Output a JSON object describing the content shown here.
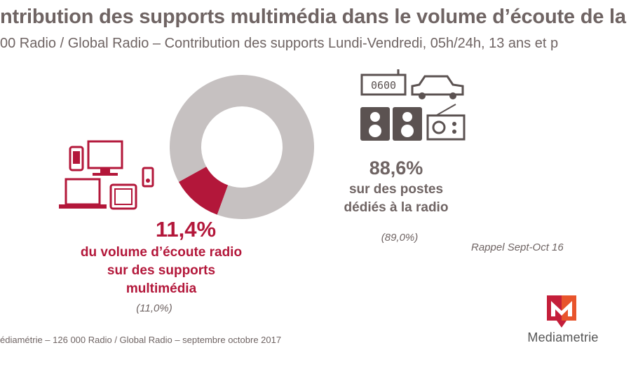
{
  "header": {
    "title": "ntribution des supports multimédia dans le volume d’écoute de la Radio",
    "subtitle": "00 Radio / Global Radio – Contribution des supports Lundi-Vendredi, 05h/24h, 13 ans et p"
  },
  "chart_data": {
    "type": "pie",
    "style": "donut",
    "slices": [
      {
        "label": "du volume d’écoute radio sur des supports multimédia",
        "value": 11.4,
        "value_text": "11,4%",
        "previous_text": "(11,0%)",
        "color": "#b3173a"
      },
      {
        "label": "sur des postes dédiés à la radio",
        "value": 88.6,
        "value_text": "88,6%",
        "previous_text": "(89,0%)",
        "color": "#c6c1c1"
      }
    ],
    "annotation": "Rappel Sept-Oct 16"
  },
  "multimedia": {
    "pct": "11,4%",
    "label_lines": [
      "du volume d’écoute radio",
      "sur des supports",
      "multimédia"
    ],
    "previous": "(11,0%)"
  },
  "dedicated": {
    "pct": "88,6%",
    "label_lines": [
      "sur des postes",
      "dédiés à la radio"
    ],
    "previous": "(89,0%)"
  },
  "icons": {
    "radio_display": "0600",
    "multimedia_icons": [
      "smartphone-icon",
      "monitor-icon",
      "mp3-player-icon",
      "laptop-icon",
      "tablet-icon"
    ],
    "dedicated_icons": [
      "alarm-clock-radio-icon",
      "car-icon",
      "hifi-speakers-icon",
      "transistor-radio-icon"
    ]
  },
  "footer": {
    "rappel": "Rappel Sept-Oct 16",
    "source": "édiamétrie – 126 000 Radio / Global Radio – septembre octobre 2017",
    "logo_text": "Mediametrie"
  },
  "colors": {
    "accent": "#b3173a",
    "gray_text": "#6f6463",
    "donut_gray": "#c6c1c1",
    "icon_dark": "#5b5251"
  }
}
